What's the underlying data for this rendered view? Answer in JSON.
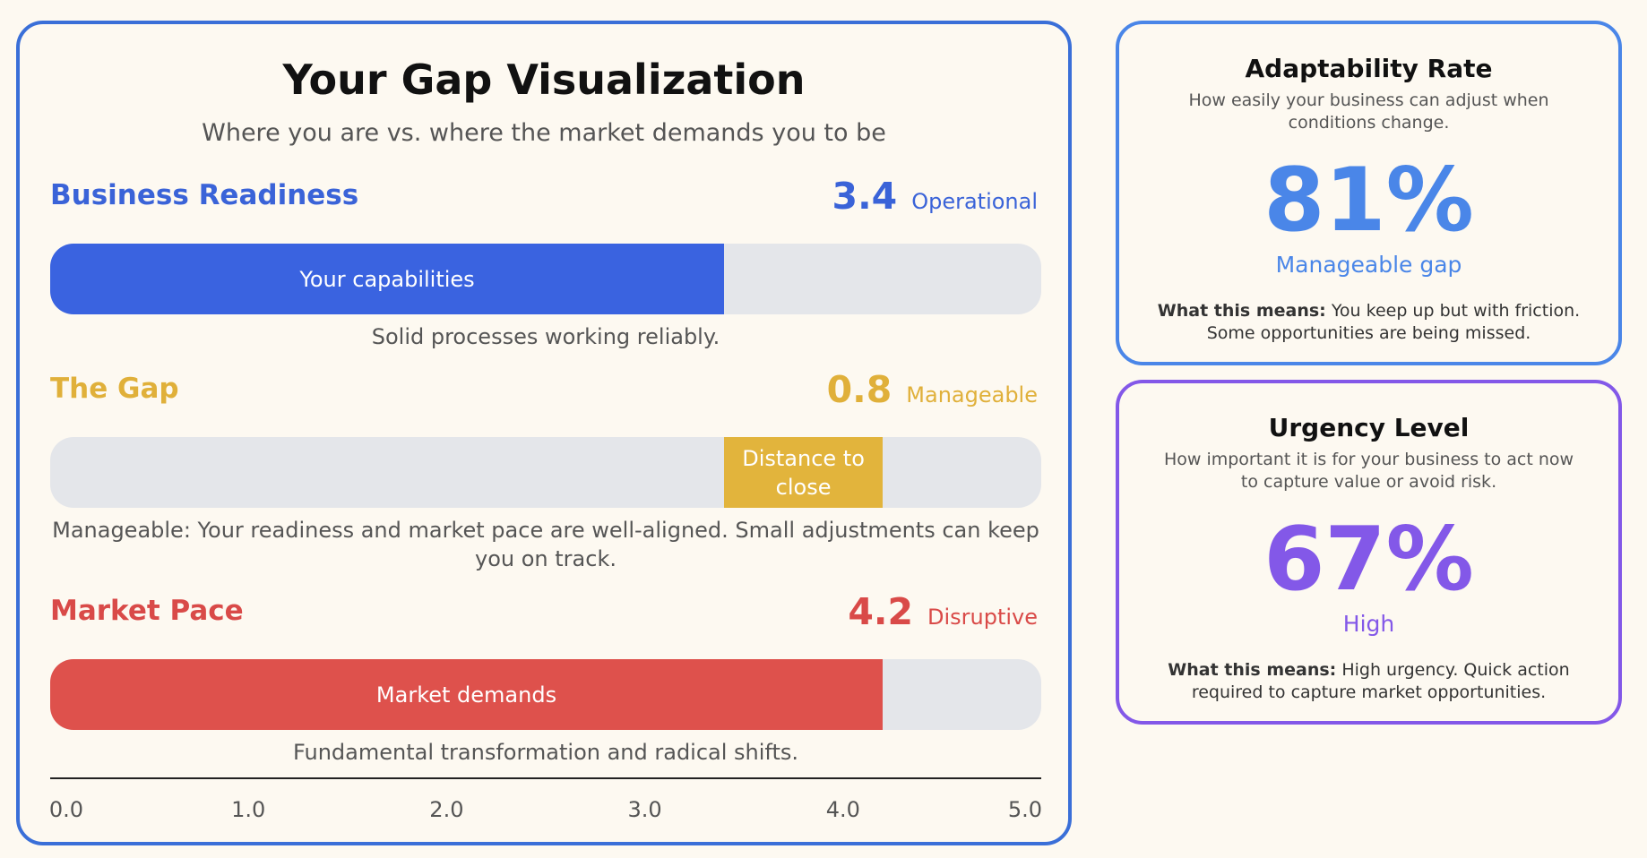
{
  "gap": {
    "title": "Your Gap Visualization",
    "subtitle": "Where you are vs. where the market demands you to be",
    "readiness": {
      "label": "Business Readiness",
      "score": "3.4",
      "status": "Operational",
      "bar_label": "Your capabilities",
      "description": "Solid processes working reliably.",
      "value": 3.4,
      "color": "#3a63e0"
    },
    "gap_section": {
      "label": "The Gap",
      "score": "0.8",
      "status": "Manageable",
      "bar_label": "Distance to close",
      "description": "Manageable: Your readiness and market pace are well-aligned. Small adjustments can keep you on track.",
      "start": 3.4,
      "end": 4.2,
      "color": "#e2b43c"
    },
    "market": {
      "label": "Market Pace",
      "score": "4.2",
      "status": "Disruptive",
      "bar_label": "Market demands",
      "description": "Fundamental transformation and radical shifts.",
      "value": 4.2,
      "color": "#de514c"
    },
    "scale": {
      "min": 0,
      "max": 5,
      "ticks": [
        "0.0",
        "1.0",
        "2.0",
        "3.0",
        "4.0",
        "5.0"
      ]
    }
  },
  "adaptability": {
    "title": "Adaptability Rate",
    "description": "How easily your business can adjust when conditions change.",
    "percent": "81%",
    "level": "Manageable gap",
    "meaning_label": "What this means:",
    "meaning_text": "You keep up but with friction. Some opportunities are being missed.",
    "color": "#4a86e8"
  },
  "urgency": {
    "title": "Urgency Level",
    "description": "How important it is for your business to act now to capture value or avoid risk.",
    "percent": "67%",
    "level": "High",
    "meaning_label": "What this means:",
    "meaning_text": "High urgency. Quick action required to capture market opportunities.",
    "color": "#8358e8"
  }
}
